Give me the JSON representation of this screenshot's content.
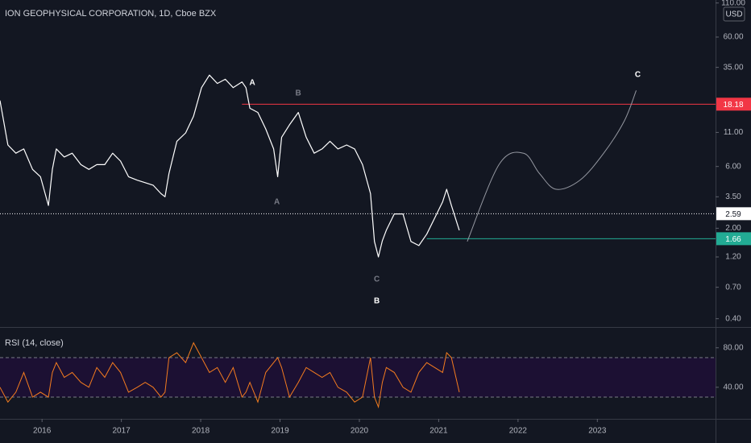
{
  "chart_data": {
    "type": "line",
    "title": "ION GEOPHYSICAL CORPORATION, 1D, Cboe BZX",
    "currency": "USD",
    "log_scale": true,
    "xlim": [
      2015.47,
      2024.49
    ],
    "xticks": [
      2016,
      2017,
      2018,
      2019,
      2020,
      2021,
      2022,
      2023
    ],
    "ylim": [
      0.35,
      116
    ],
    "yticks": [
      {
        "value": 110,
        "label": "110.00"
      },
      {
        "value": 60,
        "label": "60.00"
      },
      {
        "value": 35,
        "label": "35.00"
      },
      {
        "value": 11,
        "label": "11.00"
      },
      {
        "value": 6,
        "label": "6.00"
      },
      {
        "value": 3.5,
        "label": "3.50"
      },
      {
        "value": 2,
        "label": "2.00"
      },
      {
        "value": 1.2,
        "label": "1.20"
      },
      {
        "value": 0.7,
        "label": "0.70"
      },
      {
        "value": 0.4,
        "label": "0.40"
      }
    ],
    "price": {
      "color": "#ffffff",
      "x": [
        2015.47,
        2015.57,
        2015.67,
        2015.77,
        2015.88,
        2015.98,
        2016.08,
        2016.13,
        2016.18,
        2016.28,
        2016.38,
        2016.49,
        2016.59,
        2016.69,
        2016.79,
        2016.89,
        2016.99,
        2017.09,
        2017.2,
        2017.3,
        2017.4,
        2017.5,
        2017.55,
        2017.6,
        2017.7,
        2017.81,
        2017.91,
        2018.01,
        2018.11,
        2018.21,
        2018.31,
        2018.41,
        2018.52,
        2018.57,
        2018.62,
        2018.72,
        2018.82,
        2018.92,
        2018.97,
        2019.02,
        2019.12,
        2019.23,
        2019.33,
        2019.43,
        2019.53,
        2019.63,
        2019.73,
        2019.84,
        2019.94,
        2020.04,
        2020.14,
        2020.19,
        2020.24,
        2020.29,
        2020.34,
        2020.44,
        2020.55,
        2020.65,
        2020.75,
        2020.85,
        2020.95,
        2021.05,
        2021.1,
        2021.16,
        2021.26
      ],
      "values": [
        19.4,
        8.8,
        7.6,
        8.2,
        5.7,
        5.0,
        3.0,
        5.7,
        8.2,
        7.1,
        7.6,
        6.2,
        5.7,
        6.2,
        6.2,
        7.6,
        6.6,
        5.0,
        4.7,
        4.5,
        4.3,
        3.7,
        3.5,
        5.3,
        9.4,
        10.9,
        14.7,
        24.4,
        30.5,
        26.3,
        28.3,
        24.4,
        27.0,
        24.4,
        16.9,
        15.7,
        11.7,
        8.2,
        5.0,
        10.1,
        12.6,
        15.7,
        10.1,
        7.6,
        8.2,
        9.4,
        8.2,
        8.8,
        8.2,
        6.2,
        3.7,
        1.58,
        1.2,
        1.6,
        1.93,
        2.58,
        2.58,
        1.58,
        1.47,
        1.8,
        2.4,
        3.2,
        4.0,
        3.0,
        1.93
      ]
    },
    "projection": {
      "color": "#9598a1",
      "x": [
        2021.36,
        2021.76,
        2022.07,
        2022.27,
        2022.48,
        2022.78,
        2023.08,
        2023.34,
        2023.49
      ],
      "values": [
        1.58,
        6.2,
        7.6,
        5.3,
        4.0,
        4.7,
        7.6,
        13.5,
        23.2
      ]
    },
    "levels": [
      {
        "value": 18.18,
        "color": "#f23645",
        "start": 2018.52
      },
      {
        "value": 1.66,
        "color": "#22ab94",
        "start": 2020.85
      },
      {
        "value": 2.59,
        "color": "#ffffff",
        "dotted": true
      }
    ],
    "annotations": [
      {
        "text": "A",
        "x": 2018.65,
        "y": 26.5,
        "color": "#ffffff"
      },
      {
        "text": "B",
        "x": 2019.23,
        "y": 22.0,
        "color": "#787b86"
      },
      {
        "text": "A",
        "x": 2018.96,
        "y": 3.18,
        "color": "#787b86"
      },
      {
        "text": "C",
        "x": 2020.22,
        "y": 0.805,
        "color": "#787b86"
      },
      {
        "text": "B",
        "x": 2020.22,
        "y": 0.547,
        "color": "#ffffff"
      },
      {
        "text": "C",
        "x": 2023.51,
        "y": 30.6,
        "color": "#ffffff"
      }
    ],
    "rsi": {
      "title": "RSI (14, close)",
      "color": "#f57c1f",
      "ylim": [
        8,
        99.4
      ],
      "yticks": [
        {
          "value": 80,
          "label": "80.00"
        },
        {
          "value": 40,
          "label": "40.00"
        }
      ],
      "levels": [
        70,
        30
      ],
      "values": [
        40,
        25,
        35,
        55,
        30,
        35,
        30,
        55,
        65,
        50,
        55,
        45,
        40,
        60,
        50,
        65,
        55,
        35,
        40,
        45,
        40,
        30,
        35,
        70,
        75,
        65,
        85,
        70,
        55,
        60,
        45,
        60,
        30,
        35,
        45,
        25,
        55,
        65,
        70,
        60,
        30,
        45,
        60,
        55,
        50,
        55,
        40,
        35,
        25,
        30,
        70,
        30,
        20,
        45,
        60,
        55,
        40,
        35,
        55,
        65,
        60,
        55,
        75,
        70,
        35
      ]
    }
  }
}
